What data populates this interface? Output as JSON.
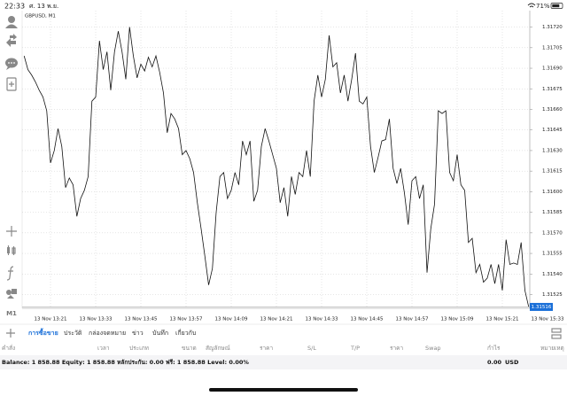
{
  "status_bar": {
    "time": "22:33",
    "date": "ศ. 13 พ.ย.",
    "battery": "71%"
  },
  "toolbar": {
    "timeframe": "M1"
  },
  "chart_data": {
    "type": "line",
    "title": "GBPUSD, M1",
    "categories": [
      null,
      null,
      null,
      null,
      null,
      null,
      null,
      "13 Nov 13:21",
      null,
      null,
      null,
      null,
      null,
      null,
      null,
      null,
      null,
      null,
      null,
      "13 Nov 13:33",
      null,
      null,
      null,
      null,
      null,
      null,
      null,
      null,
      null,
      null,
      null,
      "13 Nov 13:45",
      null,
      null,
      null,
      null,
      null,
      null,
      null,
      null,
      null,
      null,
      null,
      "13 Nov 13:57",
      null,
      null,
      null,
      null,
      null,
      null,
      null,
      null,
      null,
      null,
      null,
      "13 Nov 14:09",
      null,
      null,
      null,
      null,
      null,
      null,
      null,
      null,
      null,
      null,
      null,
      "13 Nov 14:21",
      null,
      null,
      null,
      null,
      null,
      null,
      null,
      null,
      null,
      null,
      null,
      "13 Nov 14:33",
      null,
      null,
      null,
      null,
      null,
      null,
      null,
      null,
      null,
      null,
      null,
      "13 Nov 14:45",
      null,
      null,
      null,
      null,
      null,
      null,
      null,
      null,
      null,
      null,
      null,
      "13 Nov 14:57",
      null,
      null,
      null,
      null,
      null,
      null,
      null,
      null,
      null,
      null,
      null,
      "13 Nov 15:09",
      null,
      null,
      null,
      null,
      null,
      null,
      null,
      null,
      null,
      null,
      null,
      "13 Nov 15:21",
      null,
      null,
      null,
      null,
      null,
      null,
      null,
      null,
      null,
      null,
      null,
      "13 Nov 15:33"
    ],
    "series": [
      {
        "name": "GBPUSD",
        "color": "#111111",
        "values": [
          1.31699,
          1.31689,
          1.31685,
          1.3168,
          1.31674,
          1.31669,
          1.31659,
          1.31621,
          1.3163,
          1.31646,
          1.31633,
          1.31603,
          1.3161,
          1.31605,
          1.31582,
          1.31595,
          1.31601,
          1.31611,
          1.31666,
          1.31669,
          1.3171,
          1.31689,
          1.31702,
          1.31674,
          1.31702,
          1.31717,
          1.31702,
          1.31682,
          1.3172,
          1.31699,
          1.31683,
          1.31693,
          1.31688,
          1.31698,
          1.31691,
          1.31699,
          1.31687,
          1.31672,
          1.31643,
          1.31657,
          1.31653,
          1.31646,
          1.31627,
          1.3163,
          1.31624,
          1.31614,
          1.31592,
          1.31573,
          1.31553,
          1.31532,
          1.31544,
          1.31585,
          1.31611,
          1.31614,
          1.31595,
          1.31601,
          1.31614,
          1.31605,
          1.31637,
          1.31627,
          1.31637,
          1.31593,
          1.31601,
          1.31633,
          1.31646,
          1.31637,
          1.31627,
          1.31617,
          1.31592,
          1.31603,
          1.31582,
          1.31611,
          1.31598,
          1.31614,
          1.31611,
          1.3163,
          1.31611,
          1.31666,
          1.31685,
          1.31669,
          1.31682,
          1.31714,
          1.31691,
          1.31694,
          1.31672,
          1.31685,
          1.31666,
          1.31682,
          1.31701,
          1.31666,
          1.31664,
          1.31669,
          1.31633,
          1.31614,
          1.31625,
          1.31637,
          1.31638,
          1.31653,
          1.31617,
          1.31606,
          1.31617,
          1.31599,
          1.31576,
          1.31608,
          1.31611,
          1.31595,
          1.31605,
          1.31541,
          1.31573,
          1.31591,
          1.31659,
          1.31657,
          1.31659,
          1.31614,
          1.31608,
          1.31627,
          1.31605,
          1.31601,
          1.31563,
          1.31566,
          1.31541,
          1.31547,
          1.31534,
          1.31537,
          1.31547,
          1.31533,
          1.31547,
          1.31528,
          1.31565,
          1.31547,
          1.31548,
          1.31547,
          1.31563,
          1.31528,
          1.31516,
          null,
          null,
          null,
          null,
          null
        ]
      }
    ],
    "last_price": 1.31516,
    "last_price_color": "#1a6fd8",
    "ylim": [
      1.31515,
      1.31732
    ],
    "yticks": [
      {
        "value": 1.3172,
        "label": "1.31720"
      },
      1.31705,
      {
        "value": 1.3169,
        "label": "1.31690"
      },
      1.31675,
      {
        "value": 1.3166,
        "label": "1.31660"
      },
      1.31645,
      {
        "value": 1.3163,
        "label": "1.31630"
      },
      1.31615,
      {
        "value": 1.316,
        "label": "1.31600"
      },
      1.31585,
      {
        "value": 1.3157,
        "label": "1.31570"
      },
      1.31555,
      {
        "value": 1.3154,
        "label": "1.31540"
      },
      1.31525
    ],
    "grid": true
  },
  "tabs": [
    "การซื้อขาย",
    "ประวัติ",
    "กล่องจดหมาย",
    "ข่าว",
    "บันทึก",
    "เกี่ยวกับ"
  ],
  "columns": [
    "คำสั่ง",
    "เวลา",
    "ประเภท",
    "ขนาด",
    "สัญลักษณ์",
    "ราคา",
    "S/L",
    "T/P",
    "ราคา",
    "Swap",
    "กำไร",
    "หมายเหตุ"
  ],
  "footer": {
    "summary": "Balance: 1 858.88 Equity: 1 858.88 หลักประกัน: 0.00 ฟรี: 1 858.88 Level: 0.00%",
    "profit": "0.00",
    "currency": "USD"
  }
}
